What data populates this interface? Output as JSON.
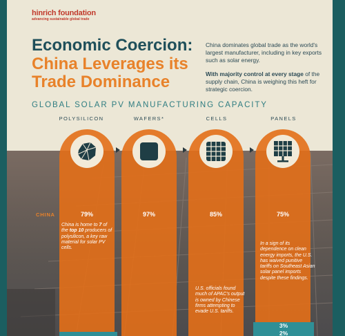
{
  "logo": {
    "name": "hinrich foundation",
    "tagline": "advancing sustainable global trade"
  },
  "title": {
    "line1": "Economic Coercion:",
    "line2": "China Leverages its Trade Dominance"
  },
  "intro": {
    "p1": "China dominates global trade as the world's largest manufacturer, including in key exports such as solar energy.",
    "p2_bold": "With majority control at every stage",
    "p2_rest": " of the supply chain, China is weighing this heft for strategic coercion."
  },
  "section_title": "GLOBAL SOLAR PV MANUFACTURING CAPACITY",
  "row_label": "CHINA",
  "columns": [
    {
      "label": "POLYSILICON",
      "china_pct": "79%",
      "icon": "polysilicon-rock-icon"
    },
    {
      "label": "WAFERS*",
      "china_pct": "97%",
      "icon": "wafer-icon"
    },
    {
      "label": "CELLS",
      "china_pct": "85%",
      "icon": "solar-cell-icon"
    },
    {
      "label": "PANELS",
      "china_pct": "75%",
      "icon": "solar-panel-icon"
    }
  ],
  "notes": {
    "poly_pre": "China is home to ",
    "poly_b1": "7",
    "poly_mid": " of the ",
    "poly_b2": "top 10",
    "poly_post": " producers of polysilicon, a key raw material for solar PV cells.",
    "cells": "U.S. officials found much of APAC's output is owned by Chinese firms attempting to evade U.S. tariffs.",
    "panels": "In a sign of its dependence on clean energy imports, the U.S. has waived punitive tariffs on Southeast Asian solar panel imports despite these findings."
  },
  "panel_bars": [
    "3%",
    "2%"
  ],
  "colors": {
    "orange": "#e36f18",
    "teal": "#2f8f96",
    "navy": "#1f4f5a",
    "cream": "#ece7d6"
  }
}
